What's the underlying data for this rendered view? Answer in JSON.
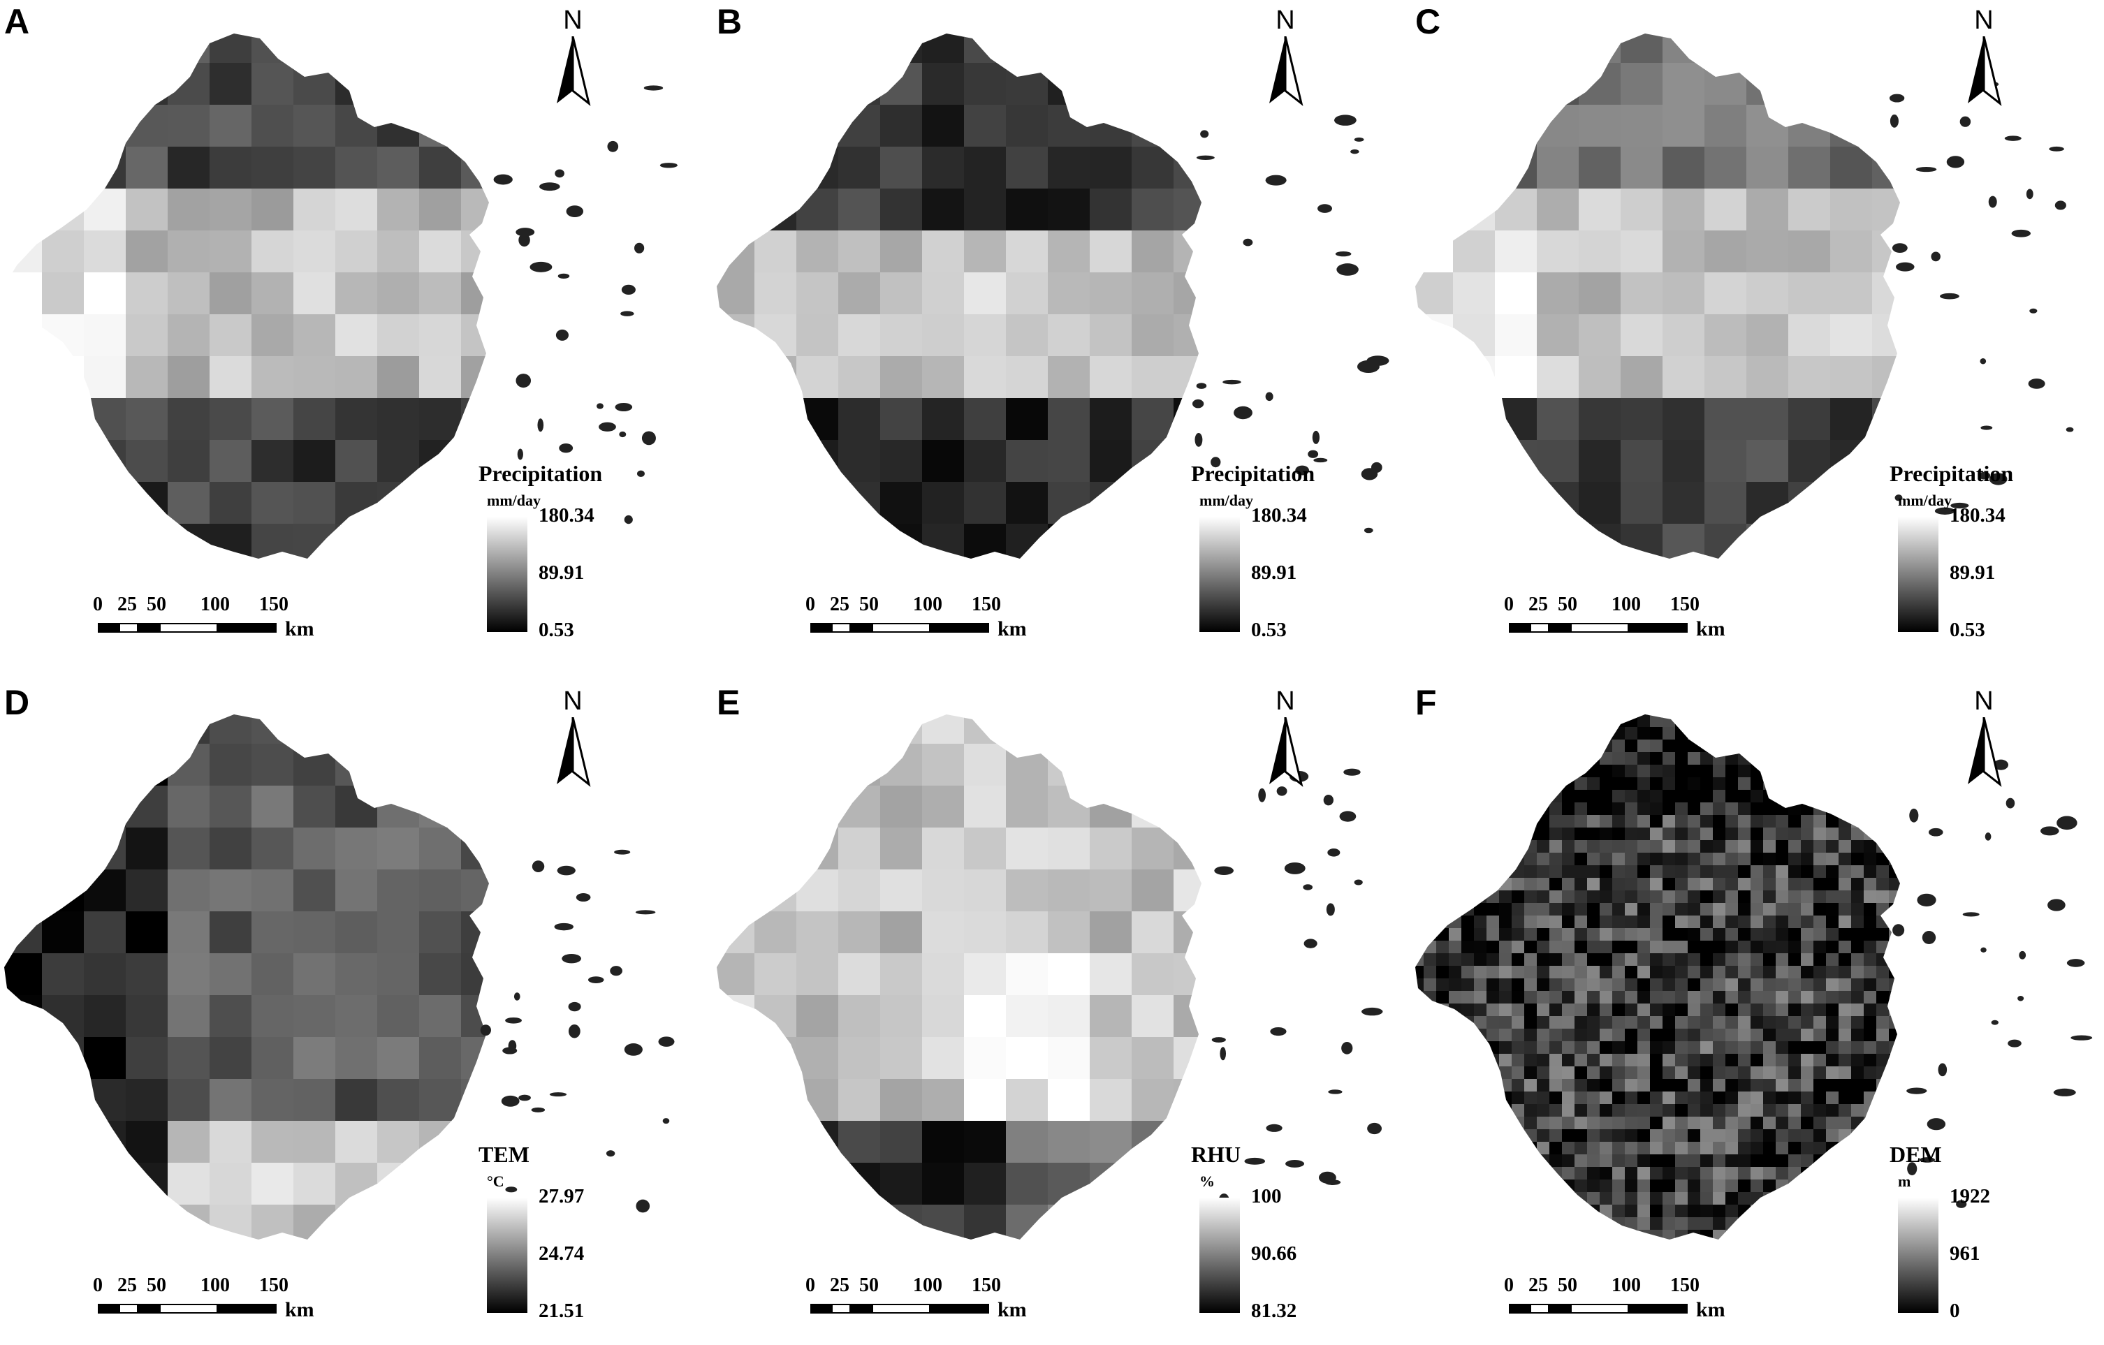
{
  "panels": [
    {
      "letter": "A",
      "legend": {
        "title": "Precipitation",
        "unit": "mm/day",
        "max": "180.34",
        "mid": "89.91",
        "min": "0.53"
      }
    },
    {
      "letter": "B",
      "legend": {
        "title": "Precipitation",
        "unit": "mm/day",
        "max": "180.34",
        "mid": "89.91",
        "min": "0.53"
      }
    },
    {
      "letter": "C",
      "legend": {
        "title": "Precipitation",
        "unit": "mm/day",
        "max": "180.34",
        "mid": "89.91",
        "min": "0.53"
      }
    },
    {
      "letter": "D",
      "legend": {
        "title": "TEM",
        "unit": "°C",
        "max": "27.97",
        "mid": "24.74",
        "min": "21.51"
      }
    },
    {
      "letter": "E",
      "legend": {
        "title": "RHU",
        "unit": "%",
        "max": "100",
        "mid": "90.66",
        "min": "81.32"
      }
    },
    {
      "letter": "F",
      "legend": {
        "title": "DEM",
        "unit": "m",
        "max": "1922",
        "mid": "961",
        "min": "0"
      }
    }
  ],
  "north_label": "N",
  "scalebar": {
    "ticks": [
      "0",
      "25",
      "50",
      "100",
      "150"
    ],
    "unit": "km"
  },
  "colors": {
    "ramp_high": "#ffffff",
    "ramp_low": "#000000",
    "background": "#ffffff"
  }
}
